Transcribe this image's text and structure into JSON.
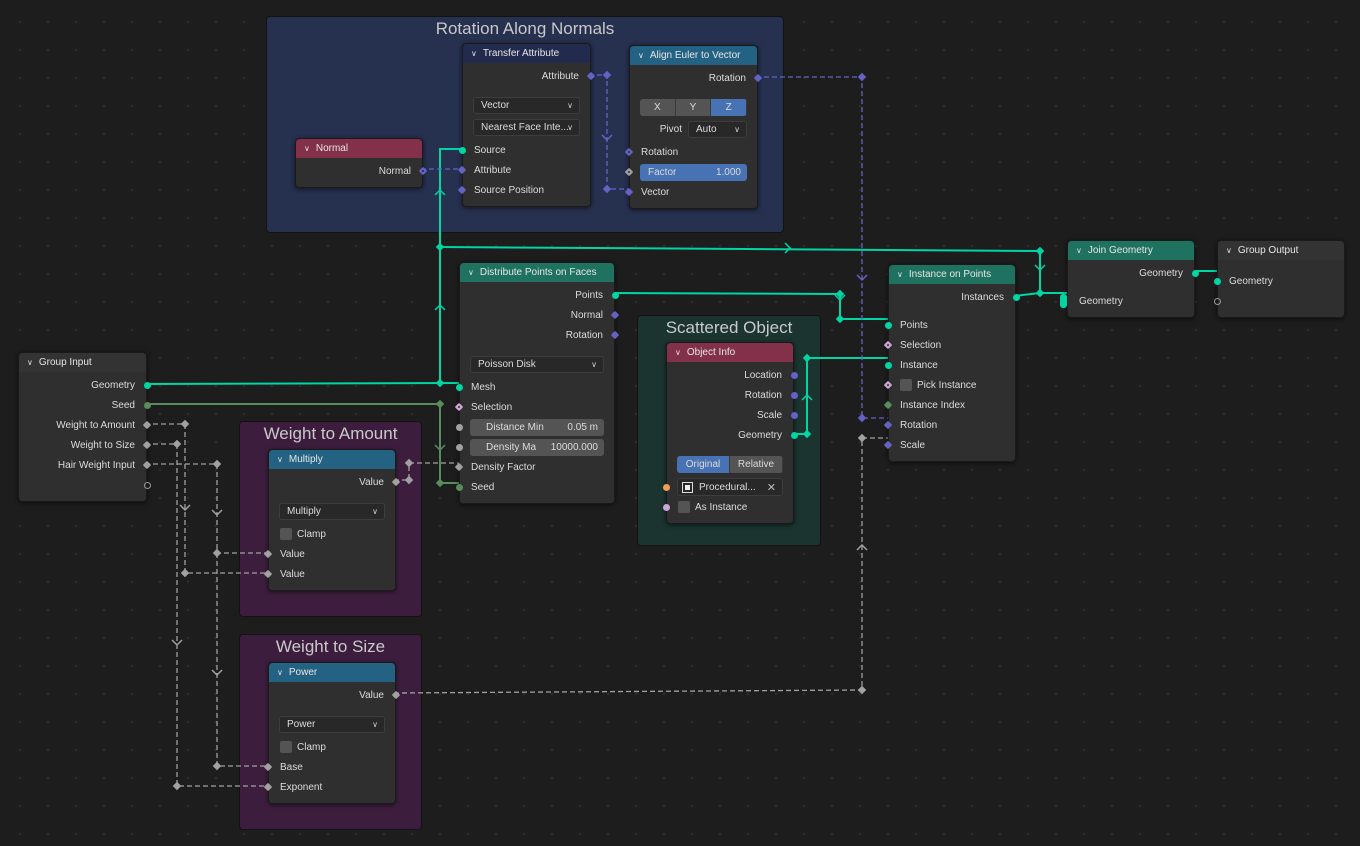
{
  "editor": "Geometry Node Editor",
  "socket_colors": {
    "geometry": "#00d6a3",
    "vector": "#6363c7",
    "float": "#a1a1a1",
    "int": "#598c5c",
    "bool": "#cca6d6",
    "object": "#ed9e5c",
    "none": "#999999"
  },
  "frames": [
    {
      "id": "rotation",
      "label": "Rotation Along Normals",
      "color": "#26304f"
    },
    {
      "id": "amount",
      "label": "Weight to Amount",
      "color": "#3d1d3e"
    },
    {
      "id": "size",
      "label": "Weight to Size",
      "color": "#3d1d3e"
    },
    {
      "id": "scattered",
      "label": "Scattered Object",
      "color": "#1b3430"
    }
  ],
  "nodes": [
    {
      "id": "normal",
      "title": "Normal",
      "header_color": "#83314a",
      "rows": [
        {
          "kind": "out",
          "label": "Normal",
          "socket": "vector",
          "shape": "diamond-dot"
        }
      ]
    },
    {
      "id": "transfer",
      "title": "Transfer Attribute",
      "header_color": "#222a4d",
      "rows": [
        {
          "kind": "out",
          "label": "Attribute",
          "socket": "vector",
          "shape": "diamond"
        },
        {
          "kind": "dropdown",
          "label": "Vector"
        },
        {
          "kind": "dropdown",
          "label": "Nearest Face Inte..."
        },
        {
          "kind": "in",
          "label": "Source",
          "socket": "geometry"
        },
        {
          "kind": "in",
          "label": "Attribute",
          "socket": "vector",
          "shape": "diamond"
        },
        {
          "kind": "in",
          "label": "Source Position",
          "socket": "vector",
          "shape": "diamond"
        }
      ]
    },
    {
      "id": "align",
      "title": "Align Euler to Vector",
      "header_color": "#246283",
      "rows": [
        {
          "kind": "out",
          "label": "Rotation",
          "socket": "vector",
          "shape": "diamond"
        },
        {
          "kind": "buttons",
          "options": [
            "X",
            "Y",
            "Z"
          ],
          "selected": "Z"
        },
        {
          "kind": "labeled-dropdown",
          "label": "Pivot",
          "value": "Auto"
        },
        {
          "kind": "in",
          "label": "Rotation",
          "socket": "vector",
          "shape": "diamond-dot"
        },
        {
          "kind": "field",
          "label": "Factor",
          "value": "1.000",
          "socket": "float",
          "shape": "diamond-dot",
          "active": true
        },
        {
          "kind": "in",
          "label": "Vector",
          "socket": "vector",
          "shape": "diamond"
        }
      ]
    },
    {
      "id": "distribute",
      "title": "Distribute Points on Faces",
      "header_color": "#1f7260",
      "rows": [
        {
          "kind": "out",
          "label": "Points",
          "socket": "geometry"
        },
        {
          "kind": "out",
          "label": "Normal",
          "socket": "vector",
          "shape": "diamond"
        },
        {
          "kind": "out",
          "label": "Rotation",
          "socket": "vector",
          "shape": "diamond"
        },
        {
          "kind": "dropdown",
          "label": "Poisson Disk"
        },
        {
          "kind": "in",
          "label": "Mesh",
          "socket": "geometry"
        },
        {
          "kind": "in",
          "label": "Selection",
          "socket": "bool",
          "shape": "diamond-dot"
        },
        {
          "kind": "field",
          "label": "Distance Min",
          "value": "0.05 m",
          "socket": "float"
        },
        {
          "kind": "field",
          "label": "Density Ma",
          "value": "10000.000",
          "socket": "float"
        },
        {
          "kind": "in",
          "label": "Density Factor",
          "socket": "float",
          "shape": "diamond"
        },
        {
          "kind": "in",
          "label": "Seed",
          "socket": "int"
        }
      ]
    },
    {
      "id": "objinfo",
      "title": "Object Info",
      "header_color": "#83314a",
      "rows": [
        {
          "kind": "out",
          "label": "Location",
          "socket": "vector"
        },
        {
          "kind": "out",
          "label": "Rotation",
          "socket": "vector"
        },
        {
          "kind": "out",
          "label": "Scale",
          "socket": "vector"
        },
        {
          "kind": "out",
          "label": "Geometry",
          "socket": "geometry"
        },
        {
          "kind": "buttons",
          "options": [
            "Original",
            "Relative"
          ],
          "selected": "Original"
        },
        {
          "kind": "object",
          "label": "Procedural...",
          "socket": "object"
        },
        {
          "kind": "checkbox",
          "label": "As Instance",
          "socket": "bool"
        }
      ]
    },
    {
      "id": "instance",
      "title": "Instance on Points",
      "header_color": "#1f7260",
      "rows": [
        {
          "kind": "out",
          "label": "Instances",
          "socket": "geometry"
        },
        {
          "kind": "in",
          "label": "Points",
          "socket": "geometry"
        },
        {
          "kind": "in",
          "label": "Selection",
          "socket": "bool",
          "shape": "diamond-dot"
        },
        {
          "kind": "in",
          "label": "Instance",
          "socket": "geometry"
        },
        {
          "kind": "checkbox",
          "label": "Pick Instance",
          "socket": "bool",
          "shape": "diamond-dot"
        },
        {
          "kind": "in",
          "label": "Instance Index",
          "socket": "int",
          "shape": "diamond"
        },
        {
          "kind": "in",
          "label": "Rotation",
          "socket": "vector",
          "shape": "diamond"
        },
        {
          "kind": "in",
          "label": "Scale",
          "socket": "vector",
          "shape": "diamond"
        }
      ]
    },
    {
      "id": "join",
      "title": "Join Geometry",
      "header_color": "#1f7260",
      "rows": [
        {
          "kind": "out",
          "label": "Geometry",
          "socket": "geometry"
        },
        {
          "kind": "in",
          "label": "Geometry",
          "socket": "geometry",
          "shape": "multi"
        }
      ]
    },
    {
      "id": "groupout",
      "title": "Group Output",
      "header_color": "#333333",
      "rows": [
        {
          "kind": "in",
          "label": "Geometry",
          "socket": "geometry"
        },
        {
          "kind": "in",
          "label": "",
          "socket": "none",
          "shape": "hollow"
        }
      ]
    },
    {
      "id": "groupin",
      "title": "Group Input",
      "header_color": "#333333",
      "rows": [
        {
          "kind": "out",
          "label": "Geometry",
          "socket": "geometry"
        },
        {
          "kind": "out",
          "label": "Seed",
          "socket": "int"
        },
        {
          "kind": "out",
          "label": "Weight to Amount",
          "socket": "float",
          "shape": "diamond"
        },
        {
          "kind": "out",
          "label": "Weight to Size",
          "socket": "float",
          "shape": "diamond"
        },
        {
          "kind": "out",
          "label": "Hair Weight Input",
          "socket": "float",
          "shape": "diamond"
        },
        {
          "kind": "out",
          "label": "",
          "socket": "none",
          "shape": "hollow"
        }
      ]
    },
    {
      "id": "multiply",
      "title": "Multiply",
      "header_color": "#246283",
      "rows": [
        {
          "kind": "out",
          "label": "Value",
          "socket": "float",
          "shape": "diamond"
        },
        {
          "kind": "dropdown",
          "label": "Multiply"
        },
        {
          "kind": "checkbox",
          "label": "Clamp"
        },
        {
          "kind": "in",
          "label": "Value",
          "socket": "float",
          "shape": "diamond"
        },
        {
          "kind": "in",
          "label": "Value",
          "socket": "float",
          "shape": "diamond"
        }
      ]
    },
    {
      "id": "power",
      "title": "Power",
      "header_color": "#246283",
      "rows": [
        {
          "kind": "out",
          "label": "Value",
          "socket": "float",
          "shape": "diamond"
        },
        {
          "kind": "dropdown",
          "label": "Power"
        },
        {
          "kind": "checkbox",
          "label": "Clamp"
        },
        {
          "kind": "in",
          "label": "Base",
          "socket": "float",
          "shape": "diamond"
        },
        {
          "kind": "in",
          "label": "Exponent",
          "socket": "float",
          "shape": "diamond"
        }
      ]
    }
  ]
}
